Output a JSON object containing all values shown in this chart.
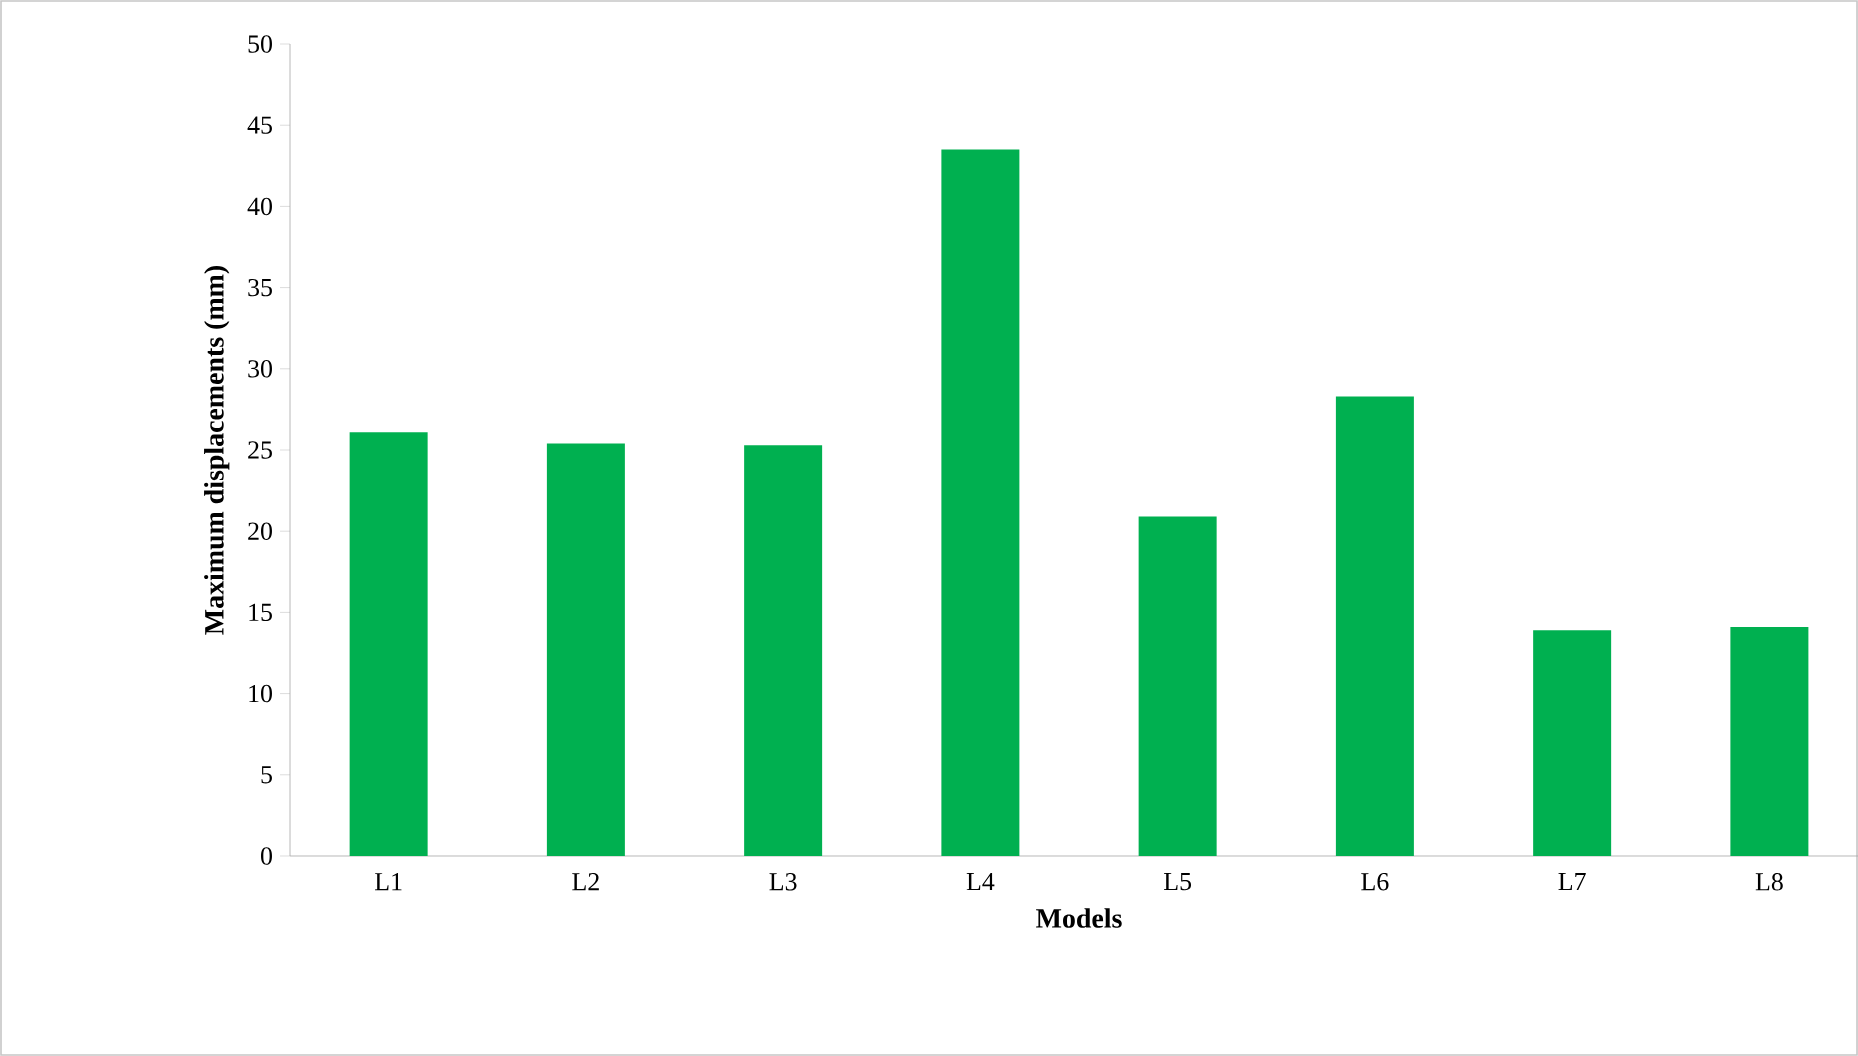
{
  "chart_data": {
    "type": "bar",
    "xlabel": "Models",
    "ylabel": "Maximum displacements (mm)",
    "categories": [
      "L1",
      "L2",
      "L3",
      "L4",
      "L5",
      "L6",
      "L7",
      "L8"
    ],
    "values": [
      26.1,
      25.4,
      25.3,
      43.5,
      20.9,
      28.3,
      13.9,
      14.1
    ],
    "color": "#00b050",
    "ylim": [
      0,
      50
    ],
    "yticks": [
      0,
      5,
      10,
      15,
      20,
      25,
      30,
      35,
      40,
      45,
      50
    ],
    "grid": false
  }
}
